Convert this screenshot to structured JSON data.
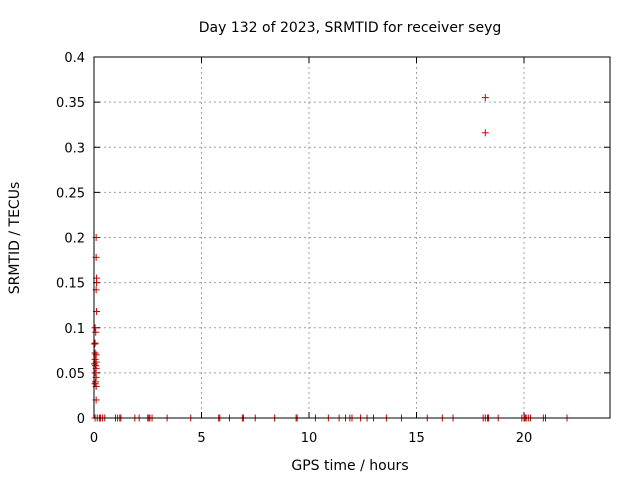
{
  "chart_data": {
    "type": "scatter",
    "title": "Day 132 of 2023, SRMTID for receiver seyg",
    "xlabel": "GPS time / hours",
    "ylabel": "SRMTID / TECUs",
    "xlim": [
      0,
      24
    ],
    "ylim": [
      0,
      0.4
    ],
    "xticks": [
      0,
      5,
      10,
      15,
      20
    ],
    "xtick_labels": [
      "0",
      "5",
      "10",
      "15",
      "20"
    ],
    "yticks": [
      0,
      0.05,
      0.1,
      0.15,
      0.2,
      0.25,
      0.3,
      0.35,
      0.4
    ],
    "ytick_labels": [
      "0",
      "0.05",
      "0.1",
      "0.15",
      "0.2",
      "0.25",
      "0.3",
      "0.35",
      "0.4"
    ],
    "grid": true,
    "marker": "+",
    "marker_color": "#cc0000",
    "series": [
      {
        "points": [
          [
            0.1,
            0.2
          ],
          [
            0.1,
            0.178
          ],
          [
            0.12,
            0.155
          ],
          [
            0.12,
            0.15
          ],
          [
            0.1,
            0.142
          ],
          [
            0.12,
            0.118
          ],
          [
            0.05,
            0.1
          ],
          [
            0.08,
            0.095
          ],
          [
            0.05,
            0.083
          ],
          [
            0.03,
            0.082
          ],
          [
            0.05,
            0.072
          ],
          [
            0.1,
            0.07
          ],
          [
            0.05,
            0.065
          ],
          [
            0.1,
            0.062
          ],
          [
            0.02,
            0.06
          ],
          [
            0.07,
            0.058
          ],
          [
            0.1,
            0.055
          ],
          [
            0.05,
            0.05
          ],
          [
            0.1,
            0.045
          ],
          [
            0.07,
            0.04
          ],
          [
            0.05,
            0.038
          ],
          [
            0.1,
            0.035
          ],
          [
            0.1,
            0.02
          ],
          [
            18.2,
            0.355
          ],
          [
            18.2,
            0.316
          ],
          [
            0.05,
            0
          ],
          [
            0.15,
            0
          ],
          [
            0.25,
            0
          ],
          [
            0.3,
            0
          ],
          [
            0.4,
            0
          ],
          [
            0.5,
            0
          ],
          [
            1.0,
            0
          ],
          [
            1.1,
            0
          ],
          [
            1.2,
            0
          ],
          [
            1.25,
            0
          ],
          [
            1.9,
            0
          ],
          [
            2.1,
            0
          ],
          [
            2.5,
            0
          ],
          [
            2.55,
            0
          ],
          [
            2.6,
            0
          ],
          [
            2.7,
            0
          ],
          [
            3.4,
            0
          ],
          [
            4.5,
            0
          ],
          [
            5.8,
            0
          ],
          [
            5.85,
            0
          ],
          [
            6.3,
            0
          ],
          [
            6.9,
            0
          ],
          [
            6.95,
            0
          ],
          [
            7.5,
            0
          ],
          [
            8.4,
            0
          ],
          [
            9.4,
            0
          ],
          [
            9.45,
            0
          ],
          [
            10.3,
            0
          ],
          [
            10.9,
            0
          ],
          [
            11.4,
            0
          ],
          [
            11.7,
            0
          ],
          [
            11.9,
            0
          ],
          [
            12.0,
            0
          ],
          [
            12.4,
            0
          ],
          [
            12.7,
            0
          ],
          [
            13.0,
            0
          ],
          [
            13.6,
            0
          ],
          [
            14.3,
            0
          ],
          [
            15.5,
            0
          ],
          [
            16.2,
            0
          ],
          [
            16.7,
            0
          ],
          [
            18.1,
            0
          ],
          [
            18.2,
            0
          ],
          [
            18.3,
            0
          ],
          [
            18.35,
            0
          ],
          [
            18.8,
            0
          ],
          [
            19.9,
            0
          ],
          [
            20.0,
            0
          ],
          [
            20.05,
            0
          ],
          [
            20.1,
            0
          ],
          [
            20.2,
            0
          ],
          [
            20.3,
            0
          ],
          [
            20.9,
            0
          ],
          [
            21.0,
            0
          ],
          [
            22.0,
            0
          ]
        ]
      }
    ]
  }
}
